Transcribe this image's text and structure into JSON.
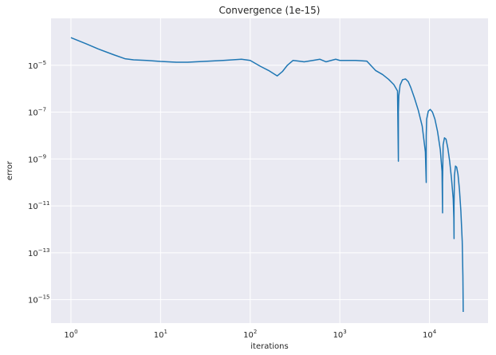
{
  "chart_data": {
    "type": "line",
    "title": "Convergence (1e-15)",
    "xlabel": "iterations",
    "ylabel": "error",
    "xscale": "log",
    "yscale": "log",
    "xlim": [
      0.6,
      45000
    ],
    "ylim": [
      1e-16,
      0.001
    ],
    "grid": true,
    "x_ticks": [
      1,
      10,
      100,
      1000,
      10000
    ],
    "x_tick_labels": [
      {
        "base": "10",
        "exp": "0"
      },
      {
        "base": "10",
        "exp": "1"
      },
      {
        "base": "10",
        "exp": "2"
      },
      {
        "base": "10",
        "exp": "3"
      },
      {
        "base": "10",
        "exp": "4"
      }
    ],
    "y_ticks": [
      1e-05,
      1e-07,
      1e-09,
      1e-11,
      1e-13,
      1e-15
    ],
    "y_tick_labels": [
      {
        "base": "10",
        "exp": "−5"
      },
      {
        "base": "10",
        "exp": "−7"
      },
      {
        "base": "10",
        "exp": "−9"
      },
      {
        "base": "10",
        "exp": "−11"
      },
      {
        "base": "10",
        "exp": "−13"
      },
      {
        "base": "10",
        "exp": "−15"
      }
    ],
    "line_color": "#1f77b4",
    "background_color": "#eaeaf2",
    "grid_color": "#ffffff",
    "series": [
      {
        "x": [
          1,
          1.5,
          2,
          3,
          4,
          5,
          7,
          10,
          15,
          20,
          30,
          50,
          80,
          100,
          130,
          160,
          200,
          230,
          260,
          300,
          350,
          400,
          500,
          600,
          700,
          800,
          900,
          1000,
          1500,
          2000,
          2500,
          3000,
          3500,
          4000,
          4400,
          4500,
          4500,
          4550,
          4700,
          5000,
          5400,
          5800,
          6200,
          6800,
          7500,
          8300,
          9000,
          9200,
          9200,
          9300,
          9700,
          10200,
          10800,
          11500,
          12300,
          13200,
          13800,
          14000,
          14000,
          14200,
          14700,
          15300,
          16000,
          16800,
          17600,
          18400,
          18700,
          18800,
          18800,
          19000,
          19500,
          20100,
          20800,
          21600,
          22400,
          23200,
          23600,
          23800
        ],
        "y": [
          0.00015,
          8e-05,
          5e-05,
          2.8e-05,
          1.9e-05,
          1.7e-05,
          1.6e-05,
          1.45e-05,
          1.35e-05,
          1.35e-05,
          1.45e-05,
          1.6e-05,
          1.8e-05,
          1.6e-05,
          9e-06,
          6e-06,
          3.5e-06,
          5.5e-06,
          1e-05,
          1.6e-05,
          1.5e-05,
          1.4e-05,
          1.6e-05,
          1.8e-05,
          1.4e-05,
          1.6e-05,
          1.8e-05,
          1.6e-05,
          1.6e-05,
          1.5e-05,
          6e-06,
          4e-06,
          2.5e-06,
          1.5e-06,
          8e-07,
          8e-10,
          1e-07,
          5e-07,
          1.4e-06,
          2.4e-06,
          2.6e-06,
          2e-06,
          1.1e-06,
          4e-07,
          1.2e-07,
          2.5e-08,
          2e-09,
          1e-10,
          1e-08,
          5e-08,
          1.1e-07,
          1.3e-07,
          1e-07,
          5e-08,
          1.5e-08,
          2.5e-09,
          3e-10,
          5e-12,
          1e-10,
          4e-09,
          8e-09,
          7e-09,
          3e-09,
          8e-10,
          1.5e-10,
          2e-11,
          3e-12,
          4e-13,
          1e-11,
          2e-10,
          5e-10,
          4.5e-10,
          2.2e-10,
          5e-11,
          6e-12,
          3e-13,
          1e-14,
          3e-16
        ]
      }
    ]
  }
}
